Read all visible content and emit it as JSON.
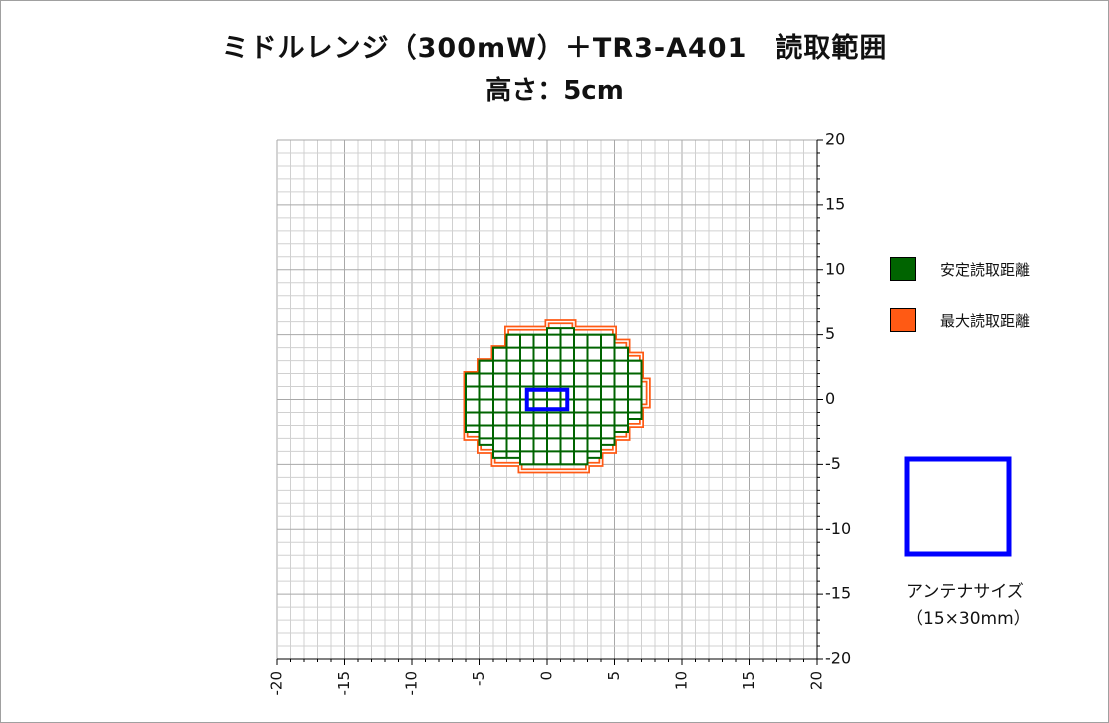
{
  "title": "ミドルレンジ（300mW）＋TR3-A401　読取範囲",
  "subtitle": "高さ：5cm",
  "legend": {
    "items": [
      {
        "label": "安定読取距離",
        "color": "#006400"
      },
      {
        "label": "最大読取距離",
        "color": "#ff5a14"
      }
    ]
  },
  "antenna": {
    "label_line1": "アンテナサイズ",
    "label_line2": "（15×30mm）",
    "color": "#0000ff"
  },
  "chart_data": {
    "type": "area",
    "xlim": [
      -20,
      20
    ],
    "ylim": [
      -20,
      20
    ],
    "x_ticks": [
      "-20",
      "-15",
      "-10",
      "-5",
      "0",
      "5",
      "10",
      "15",
      "20"
    ],
    "y_ticks": [
      "20",
      "15",
      "10",
      "5",
      "0",
      "-5",
      "-10",
      "-15",
      "-20"
    ],
    "grid": true,
    "legend_position": "right",
    "series": [
      {
        "name": "最大読取距離",
        "color": "#ff5a14",
        "polygon": [
          [
            0,
            6
          ],
          [
            2,
            6
          ],
          [
            2,
            5.5
          ],
          [
            5,
            5.5
          ],
          [
            5,
            4.5
          ],
          [
            6,
            4.5
          ],
          [
            6,
            3.5
          ],
          [
            7,
            3.5
          ],
          [
            7,
            1.5
          ],
          [
            7.5,
            1.5
          ],
          [
            7.5,
            -0.5
          ],
          [
            7,
            -0.5
          ],
          [
            7,
            -2
          ],
          [
            6,
            -2
          ],
          [
            6,
            -3
          ],
          [
            5,
            -3
          ],
          [
            5,
            -4
          ],
          [
            4,
            -4
          ],
          [
            4,
            -5
          ],
          [
            3,
            -5
          ],
          [
            3,
            -5.5
          ],
          [
            -2,
            -5.5
          ],
          [
            -2,
            -5
          ],
          [
            -4,
            -5
          ],
          [
            -4,
            -4
          ],
          [
            -5,
            -4
          ],
          [
            -5,
            -3
          ],
          [
            -6,
            -3
          ],
          [
            -6,
            2
          ],
          [
            -5,
            2
          ],
          [
            -5,
            3
          ],
          [
            -4,
            3
          ],
          [
            -4,
            4
          ],
          [
            -3,
            4
          ],
          [
            -3,
            5.5
          ],
          [
            0,
            5.5
          ]
        ]
      },
      {
        "name": "安定読取距離",
        "color": "#006400",
        "polygon": [
          [
            0,
            5.5
          ],
          [
            2,
            5.5
          ],
          [
            2,
            5
          ],
          [
            5,
            5
          ],
          [
            5,
            4
          ],
          [
            6,
            4
          ],
          [
            6,
            3
          ],
          [
            7,
            3
          ],
          [
            7,
            1
          ],
          [
            7,
            -0.5
          ],
          [
            7,
            -1.5
          ],
          [
            6,
            -1.5
          ],
          [
            6,
            -2.5
          ],
          [
            5,
            -2.5
          ],
          [
            5,
            -3.5
          ],
          [
            4,
            -3.5
          ],
          [
            4,
            -4.5
          ],
          [
            3,
            -4.5
          ],
          [
            3,
            -5
          ],
          [
            -2,
            -5
          ],
          [
            -2,
            -4.5
          ],
          [
            -4,
            -4.5
          ],
          [
            -4,
            -3.5
          ],
          [
            -5,
            -3.5
          ],
          [
            -5,
            -2.5
          ],
          [
            -6,
            -2.5
          ],
          [
            -6,
            2
          ],
          [
            -5,
            2
          ],
          [
            -5,
            3
          ],
          [
            -4,
            3
          ],
          [
            -4,
            4
          ],
          [
            -3,
            4
          ],
          [
            -3,
            5
          ],
          [
            0,
            5
          ]
        ]
      }
    ],
    "antenna_rect": {
      "x": [
        -1.5,
        1.5
      ],
      "y": [
        -0.75,
        0.75
      ]
    }
  }
}
